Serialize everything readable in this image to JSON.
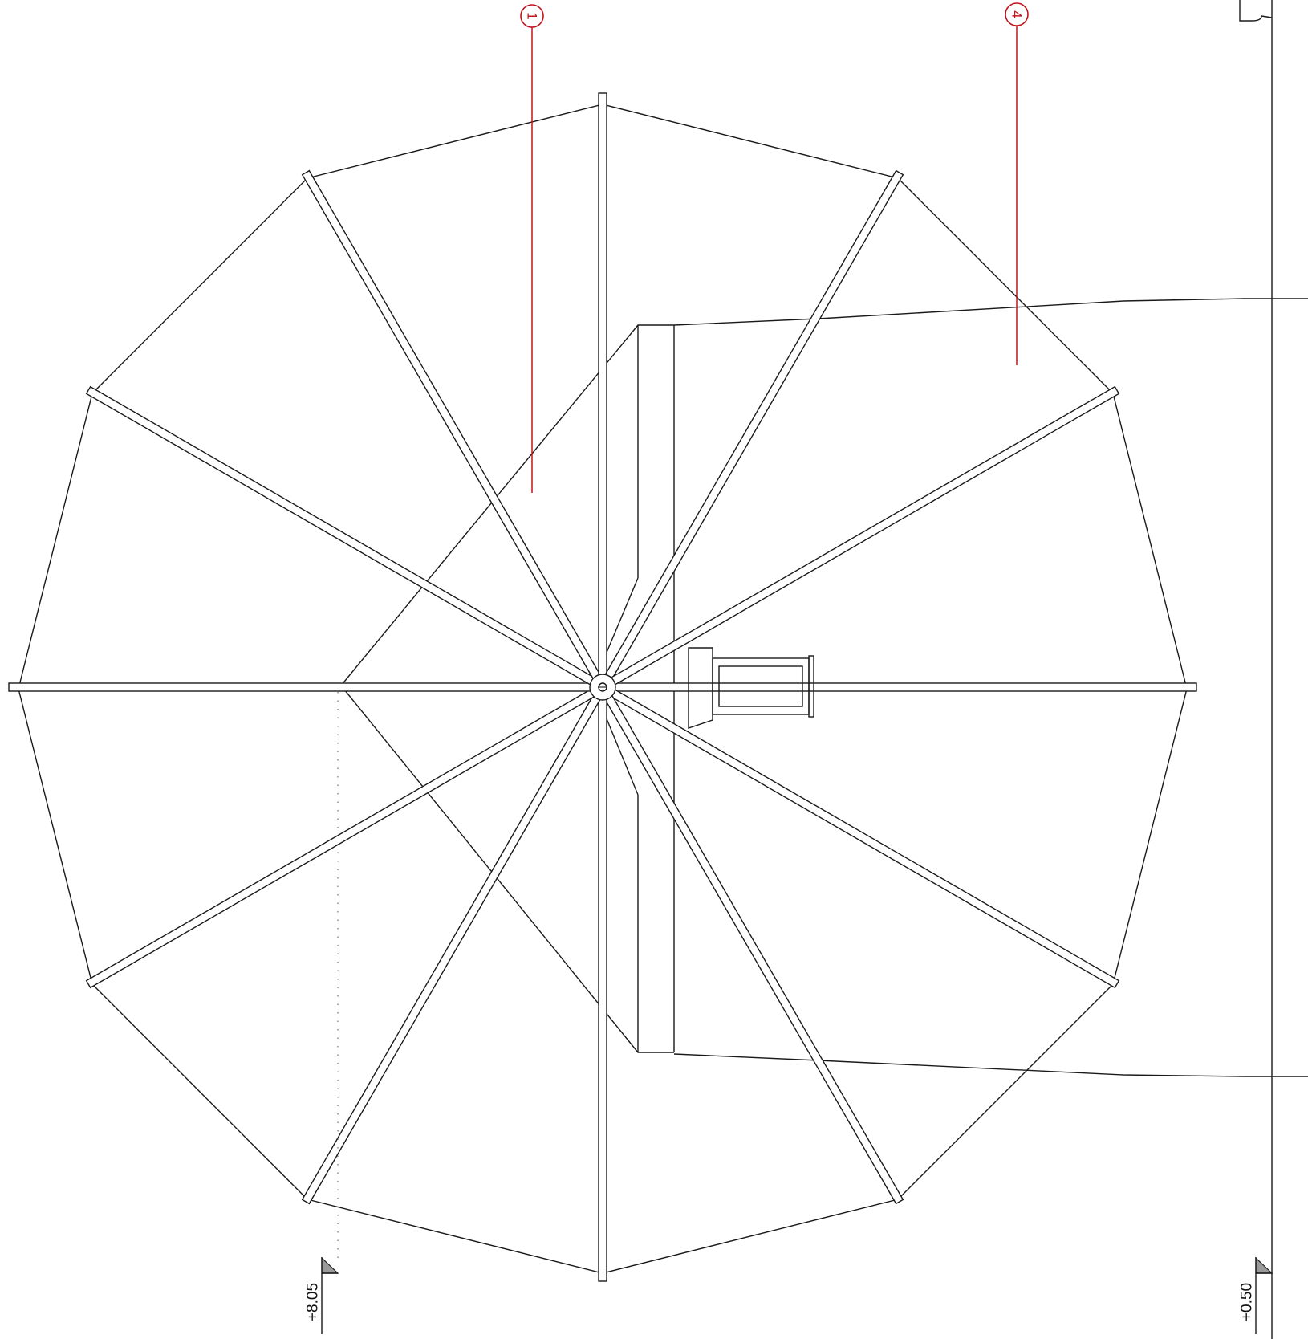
{
  "diagram": {
    "callouts": [
      {
        "id": "callout-1",
        "label": "1"
      },
      {
        "id": "callout-4",
        "label": "4"
      }
    ],
    "levels": [
      {
        "id": "level-marker-left",
        "label": "+8.05"
      },
      {
        "id": "level-marker-right",
        "label": "+0.50"
      }
    ],
    "colors": {
      "line": "#1a1a1a",
      "callout": "#c0141c"
    }
  }
}
